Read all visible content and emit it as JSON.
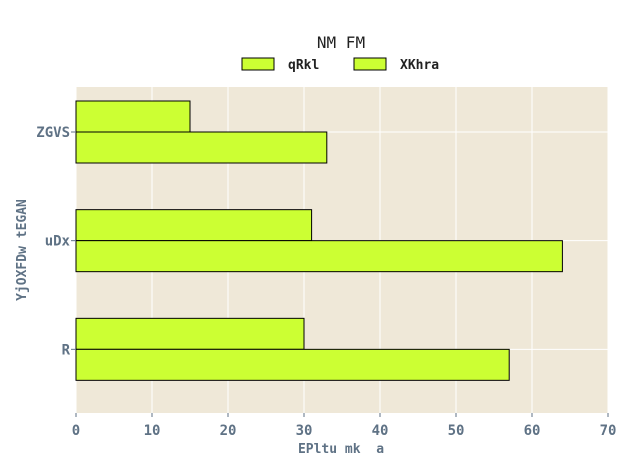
{
  "chart_data": {
    "type": "bar",
    "orientation": "horizontal",
    "title": "NM FM",
    "xlabel": "EPltu mk  a",
    "ylabel": "YjOXFDw tEGAN",
    "categories": [
      "ZGVS",
      "uDx",
      "R"
    ],
    "series": [
      {
        "name": "qRkl",
        "values": [
          15,
          31,
          30
        ],
        "color": "#ccff33"
      },
      {
        "name": "XKhra",
        "values": [
          33,
          64,
          57
        ],
        "color": "#ccff33"
      }
    ],
    "xlim": [
      0,
      70
    ],
    "xticks": [
      0,
      10,
      20,
      30,
      40,
      50,
      60,
      70
    ],
    "grid": true,
    "legend_position": "top-center",
    "background_color": "#efe8d8",
    "grid_color": "#ffffff"
  }
}
